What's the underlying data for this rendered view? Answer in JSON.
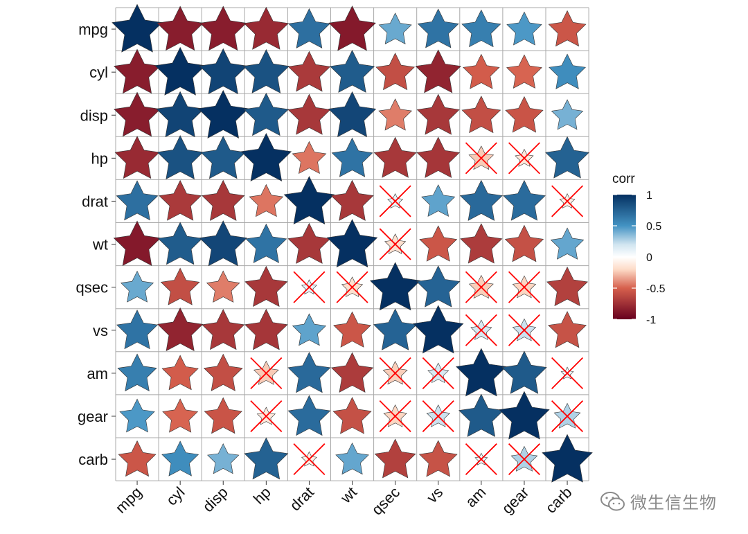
{
  "chart_data": {
    "type": "heatmap",
    "title": "",
    "xlabel": "",
    "ylabel": "",
    "shape": "star",
    "variables": [
      "mpg",
      "cyl",
      "disp",
      "hp",
      "drat",
      "wt",
      "qsec",
      "vs",
      "am",
      "gear",
      "carb"
    ],
    "matrix": [
      [
        1.0,
        -0.85,
        -0.85,
        -0.78,
        0.68,
        -0.87,
        0.42,
        0.66,
        0.6,
        0.48,
        -0.55
      ],
      [
        -0.85,
        1.0,
        0.9,
        0.83,
        -0.7,
        0.78,
        -0.59,
        -0.81,
        -0.52,
        -0.49,
        0.53
      ],
      [
        -0.85,
        0.9,
        1.0,
        0.79,
        -0.71,
        0.89,
        -0.43,
        -0.71,
        -0.59,
        -0.56,
        0.39
      ],
      [
        -0.78,
        0.83,
        0.79,
        1.0,
        -0.45,
        0.66,
        -0.71,
        -0.72,
        -0.24,
        -0.13,
        0.75
      ],
      [
        0.68,
        -0.7,
        -0.71,
        -0.45,
        1.0,
        -0.71,
        0.09,
        0.44,
        0.71,
        0.7,
        -0.09
      ],
      [
        -0.87,
        0.78,
        0.89,
        0.66,
        -0.71,
        1.0,
        -0.17,
        -0.55,
        -0.69,
        -0.58,
        0.43
      ],
      [
        0.42,
        -0.59,
        -0.43,
        -0.71,
        0.09,
        -0.17,
        1.0,
        0.74,
        -0.23,
        -0.21,
        -0.66
      ],
      [
        0.66,
        -0.81,
        -0.71,
        -0.72,
        0.44,
        -0.55,
        0.74,
        1.0,
        0.17,
        0.21,
        -0.57
      ],
      [
        0.6,
        -0.52,
        -0.59,
        -0.24,
        0.71,
        -0.69,
        -0.23,
        0.17,
        1.0,
        0.79,
        0.06
      ],
      [
        0.48,
        -0.49,
        -0.56,
        -0.13,
        0.7,
        -0.58,
        -0.21,
        0.21,
        0.79,
        1.0,
        0.27
      ],
      [
        -0.55,
        0.53,
        0.39,
        0.75,
        -0.09,
        0.43,
        -0.66,
        -0.57,
        0.06,
        0.27,
        1.0
      ]
    ],
    "insignificant": [
      [
        3,
        8
      ],
      [
        3,
        9
      ],
      [
        4,
        6
      ],
      [
        4,
        10
      ],
      [
        5,
        6
      ],
      [
        6,
        4
      ],
      [
        6,
        5
      ],
      [
        6,
        8
      ],
      [
        6,
        9
      ],
      [
        7,
        8
      ],
      [
        7,
        9
      ],
      [
        8,
        3
      ],
      [
        8,
        6
      ],
      [
        8,
        7
      ],
      [
        8,
        10
      ],
      [
        9,
        3
      ],
      [
        9,
        6
      ],
      [
        9,
        7
      ],
      [
        9,
        10
      ],
      [
        10,
        4
      ],
      [
        10,
        8
      ],
      [
        10,
        9
      ]
    ],
    "legend": {
      "title": "corr",
      "ticks": [
        1,
        0.5,
        0,
        -0.5,
        -1
      ],
      "tick_labels": [
        "1",
        "0.5",
        "0",
        "-0.5",
        "-1"
      ],
      "position": "right"
    },
    "colors": {
      "neg_strong": "#67001F",
      "neg_mid": "#D6604D",
      "neg_light": "#FDDBC7",
      "zero": "#FFFFFF",
      "pos_light": "#D1E5F0",
      "pos_mid": "#4393C3",
      "pos_strong": "#053061",
      "cross": "#FF0000",
      "grid": "#A8A8A8"
    }
  },
  "watermark": {
    "text": "微生信生物",
    "icon": "wechat-icon"
  }
}
